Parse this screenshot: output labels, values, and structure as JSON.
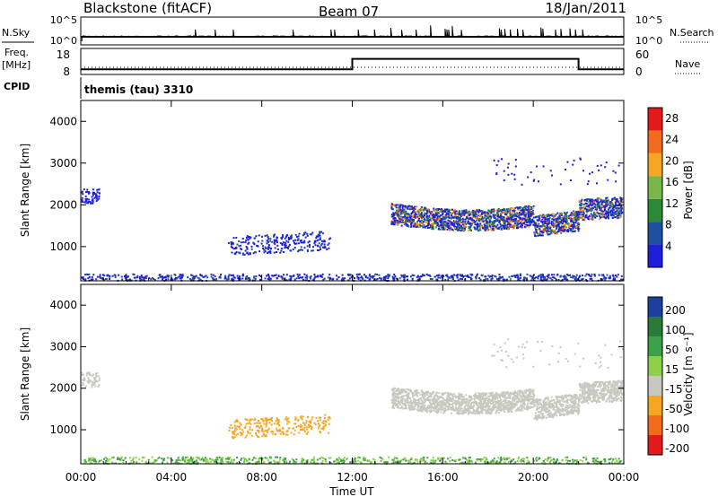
{
  "header": {
    "station": "Blackstone (fitACF)",
    "beam": "Beam 07",
    "date": "18/Jan/2011"
  },
  "labels": {
    "nsky": "N.Sky",
    "nsearch": "N.Search",
    "freq": "Freq.",
    "freq_unit": "[MHz]",
    "nave": "Nave",
    "cpid": "CPID",
    "cpid_value": "themis (tau) 3310",
    "power_axis": "Power [dB]",
    "velocity_axis": "Velocity [m s⁻¹]",
    "slant_range": "Slant Range [km]",
    "time_axis": "Time UT"
  },
  "chart_data": [
    {
      "type": "line",
      "name": "noise",
      "left_ticks": [
        "10^5",
        "10^0"
      ],
      "right_ticks": [
        "10^5",
        "10^0"
      ],
      "x": [
        0,
        24
      ],
      "x_unit": "hours UT"
    },
    {
      "type": "line",
      "name": "frequency-nave",
      "left_ticks": [
        "18",
        "8"
      ],
      "right_ticks": [
        "60",
        "0"
      ],
      "series": [
        {
          "name": "Freq.",
          "x": [
            0,
            12,
            12,
            22,
            22,
            24
          ],
          "y": [
            10,
            10,
            14,
            14,
            10,
            10
          ]
        }
      ],
      "xlim": [
        0,
        24
      ],
      "ylim": [
        8,
        18
      ]
    },
    {
      "type": "heatmap",
      "name": "power",
      "x_ticks": [
        "00:00",
        "04:00",
        "08:00",
        "12:00",
        "16:00",
        "20:00",
        "00:00"
      ],
      "x_tick_hours": [
        0,
        4,
        8,
        12,
        16,
        20,
        24
      ],
      "y_ticks": [
        1000,
        2000,
        3000,
        4000
      ],
      "ylim": [
        180,
        4500
      ],
      "xlim": [
        0,
        24
      ],
      "colorbar_ticks": [
        "4",
        "8",
        "12",
        "16",
        "20",
        "24",
        "28"
      ],
      "colors": [
        "#1f1fd8",
        "#1e50a0",
        "#2a8a3a",
        "#7ab648",
        "#f5a623",
        "#f26a1b",
        "#e41a1a"
      ]
    },
    {
      "type": "heatmap",
      "name": "velocity",
      "x_ticks": [
        "00:00",
        "04:00",
        "08:00",
        "12:00",
        "16:00",
        "20:00",
        "00:00"
      ],
      "x_tick_hours": [
        0,
        4,
        8,
        12,
        16,
        20,
        24
      ],
      "y_ticks": [
        1000,
        2000,
        3000,
        4000
      ],
      "ylim": [
        180,
        4500
      ],
      "xlim": [
        0,
        24
      ],
      "colorbar_ticks": [
        "200",
        "100",
        "50",
        "15",
        "-15",
        "-50",
        "-100",
        "-200"
      ],
      "colors": [
        "#1f3fa0",
        "#2a7a3a",
        "#3aa04a",
        "#8fd04a",
        "#c8c8c0",
        "#f5a623",
        "#f26a1b",
        "#e41a1a"
      ]
    }
  ]
}
